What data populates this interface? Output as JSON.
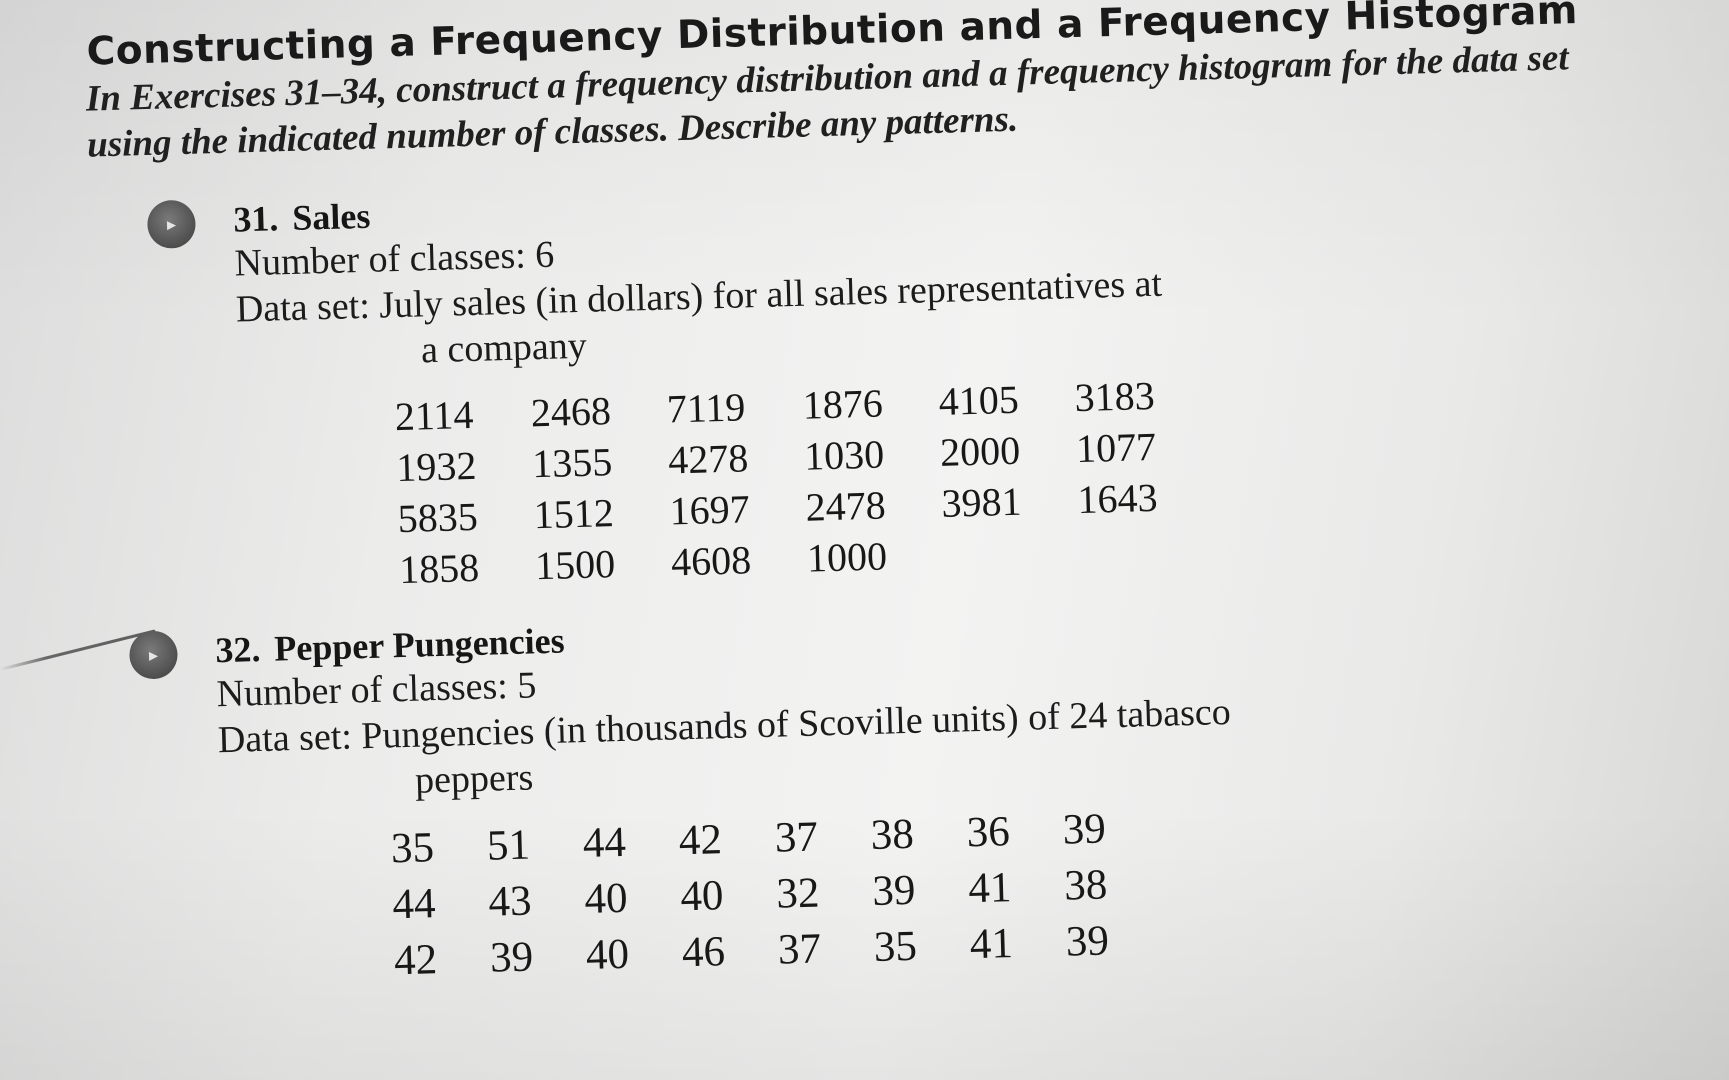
{
  "heading": "Constructing a Frequency Distribution and a Frequency Histogram",
  "instructions": "In Exercises 31–34, construct a frequency distribution and a frequency histogram for the data set using the indicated number of classes. Describe any patterns.",
  "exercises": [
    {
      "number": "31.",
      "title": "Sales",
      "classes_line": "Number of classes: 6",
      "dataset_line": "Data set: July sales (in dollars) for all sales representatives at",
      "dataset_line_cont": "a company",
      "values": [
        "2114",
        "2468",
        "7119",
        "1876",
        "4105",
        "3183",
        "1932",
        "1355",
        "4278",
        "1030",
        "2000",
        "1077",
        "5835",
        "1512",
        "1697",
        "2478",
        "3981",
        "1643",
        "1858",
        "1500",
        "4608",
        "1000"
      ]
    },
    {
      "number": "32.",
      "title": "Pepper Pungencies",
      "classes_line": "Number of classes: 5",
      "dataset_line": "Data set: Pungencies (in thousands of Scoville units) of 24 tabasco",
      "dataset_line_cont": "peppers",
      "values": [
        "35",
        "51",
        "44",
        "42",
        "37",
        "38",
        "36",
        "39",
        "44",
        "43",
        "40",
        "40",
        "32",
        "39",
        "41",
        "38",
        "42",
        "39",
        "40",
        "46",
        "37",
        "35",
        "41",
        "39"
      ]
    }
  ]
}
